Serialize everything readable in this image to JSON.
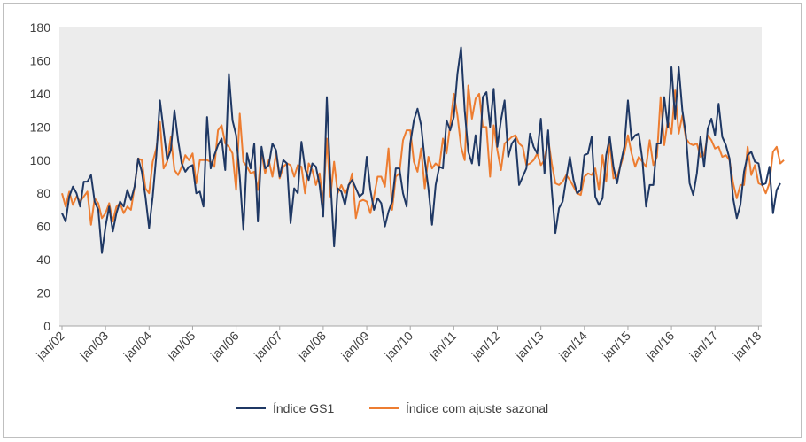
{
  "chart_data": {
    "type": "line",
    "title": "",
    "xlabel": "",
    "ylabel": "",
    "ylim": [
      0,
      180
    ],
    "yticks": [
      0,
      20,
      40,
      60,
      80,
      100,
      120,
      140,
      160,
      180
    ],
    "x_tick_labels": [
      "jan/02",
      "jan/03",
      "jan/04",
      "jan/05",
      "jan/06",
      "jan/07",
      "jan/08",
      "jan/09",
      "jan/10",
      "jan/11",
      "jan/12",
      "jan/13",
      "jan/14",
      "jan/15",
      "jan/16",
      "jan/17",
      "jan/18"
    ],
    "x_start": "jan/02",
    "x_step": "month",
    "grid": false,
    "legend": "bottom",
    "series": [
      {
        "name": "Índice GS1",
        "color": "#1f3864",
        "values": [
          68,
          63,
          78,
          84,
          80,
          72,
          87,
          87,
          91,
          75,
          70,
          44,
          60,
          72,
          57,
          68,
          75,
          72,
          82,
          76,
          84,
          101,
          93,
          78,
          59,
          78,
          103,
          136,
          118,
          100,
          106,
          130,
          112,
          98,
          93,
          96,
          97,
          80,
          81,
          72,
          126,
          95,
          103,
          109,
          113,
          94,
          152,
          124,
          115,
          90,
          58,
          104,
          95,
          110,
          63,
          108,
          95,
          97,
          110,
          106,
          90,
          100,
          98,
          62,
          83,
          80,
          111,
          95,
          88,
          98,
          96,
          85,
          66,
          138,
          88,
          48,
          83,
          81,
          73,
          85,
          88,
          83,
          78,
          80,
          102,
          82,
          70,
          77,
          74,
          60,
          69,
          75,
          95,
          95,
          80,
          72,
          110,
          124,
          131,
          121,
          100,
          83,
          61,
          85,
          96,
          95,
          124,
          118,
          126,
          152,
          168,
          130,
          105,
          98,
          115,
          97,
          138,
          141,
          120,
          143,
          108,
          124,
          136,
          102,
          110,
          113,
          85,
          90,
          95,
          116,
          108,
          104,
          125,
          92,
          118,
          82,
          56,
          71,
          75,
          89,
          102,
          88,
          80,
          82,
          103,
          104,
          114,
          78,
          73,
          77,
          103,
          114,
          96,
          86,
          98,
          108,
          136,
          112,
          115,
          116,
          100,
          72,
          85,
          85,
          110,
          110,
          138,
          120,
          156,
          125,
          156,
          130,
          115,
          86,
          79,
          92,
          114,
          96,
          119,
          125,
          115,
          134,
          114,
          109,
          101,
          77,
          65,
          73,
          93,
          103,
          105,
          99,
          98,
          85,
          86,
          96,
          68,
          82,
          86
        ]
      },
      {
        "name": "Índice com ajuste sazonal",
        "color": "#ed7d31",
        "values": [
          80,
          72,
          81,
          73,
          78,
          75,
          78,
          81,
          61,
          77,
          74,
          65,
          68,
          74,
          63,
          72,
          74,
          68,
          72,
          70,
          84,
          101,
          100,
          83,
          80,
          99,
          107,
          123,
          95,
          99,
          114,
          94,
          91,
          96,
          103,
          100,
          104,
          86,
          100,
          100,
          100,
          99,
          96,
          118,
          121,
          110,
          108,
          104,
          82,
          128,
          99,
          96,
          92,
          93,
          82,
          105,
          92,
          100,
          90,
          104,
          89,
          96,
          98,
          97,
          90,
          97,
          96,
          80,
          98,
          94,
          85,
          92,
          74,
          113,
          78,
          99,
          80,
          85,
          80,
          84,
          92,
          65,
          75,
          76,
          75,
          68,
          78,
          90,
          90,
          84,
          107,
          70,
          90,
          92,
          112,
          118,
          118,
          99,
          93,
          107,
          83,
          102,
          95,
          98,
          96,
          113,
          104,
          121,
          140,
          127,
          108,
          100,
          145,
          125,
          137,
          140,
          120,
          120,
          90,
          121,
          106,
          94,
          110,
          112,
          114,
          115,
          110,
          108,
          97,
          98,
          100,
          104,
          97,
          100,
          113,
          98,
          86,
          85,
          87,
          91,
          88,
          84,
          80,
          79,
          90,
          92,
          91,
          95,
          82,
          103,
          87,
          111,
          89,
          90,
          97,
          104,
          115,
          104,
          96,
          102,
          99,
          96,
          112,
          97,
          102,
          138,
          109,
          124,
          116,
          142,
          116,
          127,
          113,
          110,
          109,
          110,
          102,
          103,
          115,
          112,
          107,
          108,
          102,
          103,
          100,
          86,
          77,
          85,
          85,
          108,
          91,
          97,
          86,
          85,
          80,
          86,
          105,
          108,
          98,
          100
        ]
      }
    ]
  }
}
